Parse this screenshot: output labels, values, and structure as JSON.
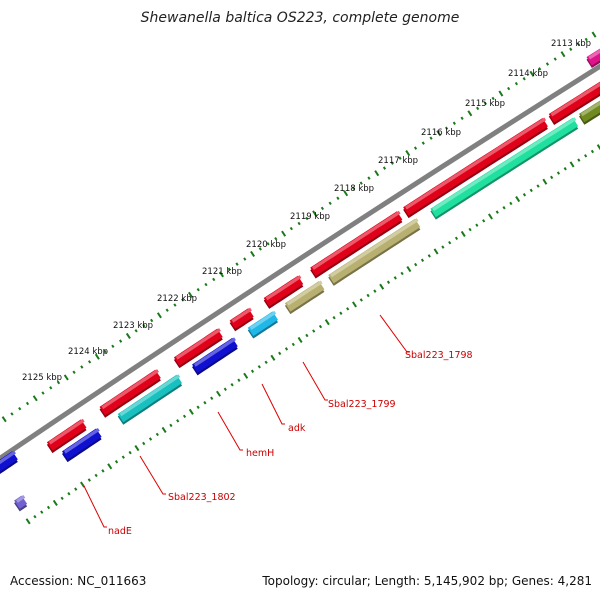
{
  "title": "Shewanella baltica OS223, complete genome",
  "footer": {
    "accession": "Accession: NC_011663",
    "summary": "Topology: circular; Length: 5,145,902 bp; Genes: 4,281"
  },
  "ticks": [
    {
      "label": "2113 kbp"
    },
    {
      "label": "2114 kbp"
    },
    {
      "label": "2115 kbp"
    },
    {
      "label": "2116 kbp"
    },
    {
      "label": "2117 kbp"
    },
    {
      "label": "2118 kbp"
    },
    {
      "label": "2119 kbp"
    },
    {
      "label": "2120 kbp"
    },
    {
      "label": "2121 kbp"
    },
    {
      "label": "2122 kbp"
    },
    {
      "label": "2123 kbp"
    },
    {
      "label": "2124 kbp"
    },
    {
      "label": "2125 kbp"
    }
  ],
  "gene_labels": [
    {
      "label": "Sbal223_1798"
    },
    {
      "label": "Sbal223_1799"
    },
    {
      "label": "adk"
    },
    {
      "label": "hemH"
    },
    {
      "label": "Sbal223_1802"
    },
    {
      "label": "nadE"
    }
  ],
  "colors": {
    "backbone": "#808080",
    "tick_dots": "#1a7a1a",
    "cds_red": "#e0001a",
    "cds_blue": "#1010d0",
    "cds_cyan": "#18c0c0",
    "cds_khaki": "#b8b070",
    "cds_teal": "#20e0a0",
    "cds_olive": "#708a20",
    "cds_magenta": "#e0148a",
    "cds_light_blue": "#20b8e8",
    "cds_purple": "#7060d0",
    "label_text": "#cc0000",
    "leader_line": "#e00000"
  }
}
